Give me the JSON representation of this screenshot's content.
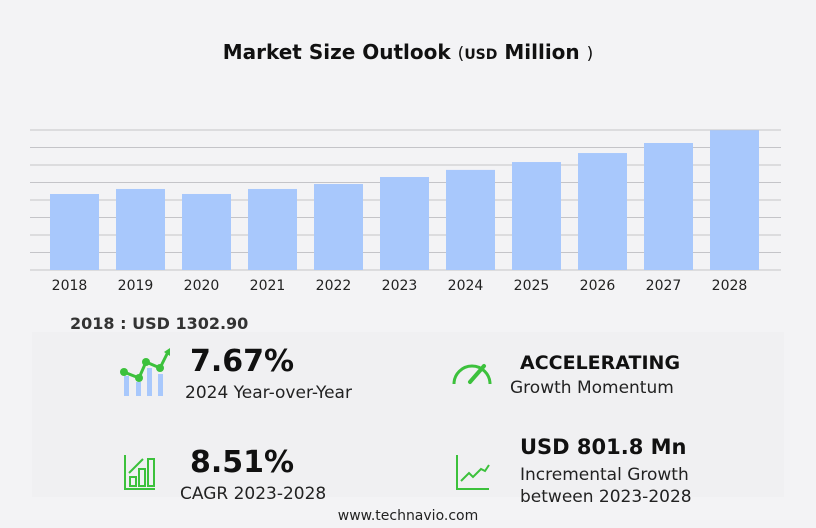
{
  "title": {
    "main": "Market Size Outlook",
    "open": "(",
    "unit": "USD",
    "unit_word": "Million",
    "close": ")"
  },
  "chart_data": {
    "type": "bar",
    "categories": [
      "2018",
      "2019",
      "2020",
      "2021",
      "2022",
      "2023",
      "2024",
      "2025",
      "2026",
      "2027",
      "2028"
    ],
    "values": [
      1302.9,
      1389,
      1303,
      1389,
      1474,
      1594,
      1716,
      1851,
      2005,
      2177,
      2396
    ],
    "ylim": [
      0,
      2400
    ],
    "grid": true,
    "bar_color": "#a8c8fc"
  },
  "base_label": "2018 : USD  1302.90",
  "stats": {
    "yoy": {
      "value": "7.67%",
      "label": "2024 Year-over-Year"
    },
    "momentum": {
      "value": "ACCELERATING",
      "label": "Growth Momentum"
    },
    "cagr": {
      "value": "8.51%",
      "label": "CAGR 2023-2028"
    },
    "incremental": {
      "value": "USD 801.8 Mn",
      "label1": "Incremental Growth",
      "label2": "between 2023-2028"
    }
  },
  "icon_color": "#3cc13c",
  "footer": "www.technavio.com"
}
